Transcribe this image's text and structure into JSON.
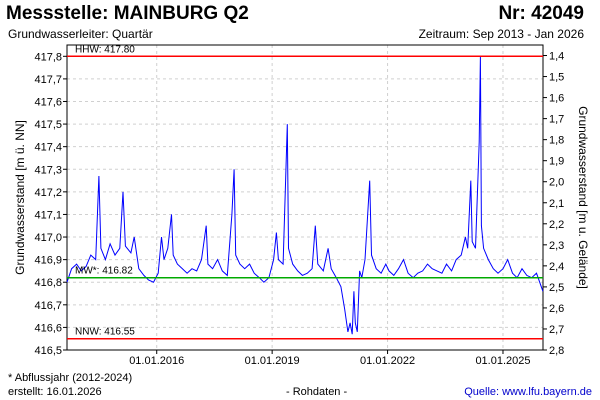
{
  "header": {
    "station": "Messstelle: MAINBURG Q2",
    "number": "Nr: 42049",
    "aquifer": "Grundwasserleiter: Quartär",
    "period": "Zeitraum: Sep 2013 - Jan 2026"
  },
  "footer": {
    "note": "* Abflussjahr (2012-2024)",
    "created": "erstellt:  16.01.2026",
    "rawdata": "- Rohdaten -",
    "source": "Quelle: www.lfu.bayern.de"
  },
  "chart_data": {
    "type": "line",
    "ylabel_left": "Grundwasserstand [m ü. NN]",
    "ylabel_right": "Grundwasserstand [m u. Gelände]",
    "xlim": [
      "2013-09-01",
      "2026-01-16"
    ],
    "ylim": [
      416.5,
      417.85
    ],
    "ylim_right": [
      2.8,
      1.35
    ],
    "x_ticks": [
      "01.01.2016",
      "01.01.2019",
      "01.01.2022",
      "01.01.2025"
    ],
    "y_ticks_left": [
      "416,5",
      "416,6",
      "416,7",
      "416,8",
      "416,9",
      "417,0",
      "417,1",
      "417,2",
      "417,3",
      "417,4",
      "417,5",
      "417,6",
      "417,7",
      "417,8"
    ],
    "y_ticks_right": [
      "1,4",
      "1,5",
      "1,6",
      "1,7",
      "1,8",
      "1,9",
      "2,0",
      "2,1",
      "2,2",
      "2,3",
      "2,4",
      "2,5",
      "2,6",
      "2,7",
      "2,8"
    ],
    "grid": true,
    "reference_lines": [
      {
        "label": "HHW: 417.80",
        "value": 417.8,
        "color": "#ff0000"
      },
      {
        "label": "MW*: 416.82",
        "value": 416.82,
        "color": "#00aa00"
      },
      {
        "label": "NNW: 416.55",
        "value": 416.55,
        "color": "#ff0000"
      }
    ],
    "series": [
      {
        "color": "#0000ff",
        "points": [
          [
            "2013-09-01",
            416.8
          ],
          [
            "2013-10-15",
            416.86
          ],
          [
            "2013-12-01",
            416.88
          ],
          [
            "2014-01-15",
            416.85
          ],
          [
            "2014-03-01",
            416.87
          ],
          [
            "2014-04-15",
            416.92
          ],
          [
            "2014-06-01",
            416.9
          ],
          [
            "2014-07-01",
            417.27
          ],
          [
            "2014-07-20",
            416.95
          ],
          [
            "2014-09-01",
            416.9
          ],
          [
            "2014-10-15",
            416.97
          ],
          [
            "2014-12-01",
            416.92
          ],
          [
            "2015-01-15",
            416.95
          ],
          [
            "2015-02-15",
            417.2
          ],
          [
            "2015-03-10",
            416.96
          ],
          [
            "2015-05-01",
            416.93
          ],
          [
            "2015-06-01",
            417.0
          ],
          [
            "2015-07-15",
            416.86
          ],
          [
            "2015-09-01",
            416.83
          ],
          [
            "2015-10-15",
            416.81
          ],
          [
            "2015-12-01",
            416.8
          ],
          [
            "2016-01-15",
            416.84
          ],
          [
            "2016-02-15",
            417.0
          ],
          [
            "2016-03-10",
            416.9
          ],
          [
            "2016-04-15",
            416.95
          ],
          [
            "2016-05-20",
            417.1
          ],
          [
            "2016-06-05",
            416.92
          ],
          [
            "2016-07-15",
            416.88
          ],
          [
            "2016-09-01",
            416.86
          ],
          [
            "2016-10-15",
            416.84
          ],
          [
            "2016-12-01",
            416.86
          ],
          [
            "2017-01-15",
            416.85
          ],
          [
            "2017-03-01",
            416.9
          ],
          [
            "2017-04-15",
            417.05
          ],
          [
            "2017-05-01",
            416.88
          ],
          [
            "2017-06-15",
            416.86
          ],
          [
            "2017-08-01",
            416.9
          ],
          [
            "2017-09-15",
            416.85
          ],
          [
            "2017-11-01",
            416.83
          ],
          [
            "2017-12-15",
            417.1
          ],
          [
            "2018-01-05",
            417.3
          ],
          [
            "2018-01-20",
            416.92
          ],
          [
            "2018-03-01",
            416.88
          ],
          [
            "2018-04-15",
            416.86
          ],
          [
            "2018-06-01",
            416.88
          ],
          [
            "2018-07-15",
            416.84
          ],
          [
            "2018-09-01",
            416.82
          ],
          [
            "2018-10-15",
            416.8
          ],
          [
            "2018-12-01",
            416.82
          ],
          [
            "2019-01-15",
            416.9
          ],
          [
            "2019-02-10",
            417.02
          ],
          [
            "2019-03-01",
            416.9
          ],
          [
            "2019-04-15",
            416.88
          ],
          [
            "2019-05-25",
            417.5
          ],
          [
            "2019-06-05",
            416.95
          ],
          [
            "2019-07-15",
            416.88
          ],
          [
            "2019-09-01",
            416.85
          ],
          [
            "2019-10-15",
            416.83
          ],
          [
            "2019-12-01",
            416.84
          ],
          [
            "2020-01-15",
            416.86
          ],
          [
            "2020-02-15",
            417.05
          ],
          [
            "2020-03-10",
            416.88
          ],
          [
            "2020-05-01",
            416.85
          ],
          [
            "2020-06-15",
            416.95
          ],
          [
            "2020-07-15",
            416.86
          ],
          [
            "2020-09-01",
            416.82
          ],
          [
            "2020-10-15",
            416.78
          ],
          [
            "2020-11-20",
            416.68
          ],
          [
            "2020-12-20",
            416.58
          ],
          [
            "2021-01-10",
            416.62
          ],
          [
            "2021-01-30",
            416.57
          ],
          [
            "2021-02-15",
            416.76
          ],
          [
            "2021-03-01",
            416.62
          ],
          [
            "2021-03-20",
            416.58
          ],
          [
            "2021-04-10",
            416.85
          ],
          [
            "2021-05-01",
            416.82
          ],
          [
            "2021-06-01",
            416.9
          ],
          [
            "2021-07-15",
            417.25
          ],
          [
            "2021-08-01",
            416.92
          ],
          [
            "2021-09-15",
            416.86
          ],
          [
            "2021-11-01",
            416.84
          ],
          [
            "2021-12-15",
            416.88
          ],
          [
            "2022-01-15",
            416.85
          ],
          [
            "2022-03-01",
            416.83
          ],
          [
            "2022-04-15",
            416.86
          ],
          [
            "2022-06-01",
            416.9
          ],
          [
            "2022-07-15",
            416.84
          ],
          [
            "2022-09-01",
            416.82
          ],
          [
            "2022-10-15",
            416.84
          ],
          [
            "2022-12-01",
            416.85
          ],
          [
            "2023-01-15",
            416.88
          ],
          [
            "2023-03-01",
            416.86
          ],
          [
            "2023-04-15",
            416.85
          ],
          [
            "2023-06-01",
            416.84
          ],
          [
            "2023-07-15",
            416.88
          ],
          [
            "2023-09-01",
            416.85
          ],
          [
            "2023-10-15",
            416.9
          ],
          [
            "2023-12-01",
            416.92
          ],
          [
            "2024-01-10",
            417.0
          ],
          [
            "2024-02-01",
            416.95
          ],
          [
            "2024-03-01",
            417.25
          ],
          [
            "2024-03-15",
            416.98
          ],
          [
            "2024-04-15",
            416.95
          ],
          [
            "2024-05-20",
            417.42
          ],
          [
            "2024-06-01",
            417.8
          ],
          [
            "2024-06-10",
            417.05
          ],
          [
            "2024-07-01",
            416.95
          ],
          [
            "2024-08-15",
            416.9
          ],
          [
            "2024-10-01",
            416.86
          ],
          [
            "2024-11-15",
            416.84
          ],
          [
            "2025-01-01",
            416.86
          ],
          [
            "2025-02-15",
            416.9
          ],
          [
            "2025-04-01",
            416.84
          ],
          [
            "2025-05-15",
            416.82
          ],
          [
            "2025-07-01",
            416.86
          ],
          [
            "2025-08-15",
            416.83
          ],
          [
            "2025-10-01",
            416.82
          ],
          [
            "2025-11-15",
            416.84
          ],
          [
            "2026-01-15",
            416.76
          ]
        ]
      }
    ]
  }
}
